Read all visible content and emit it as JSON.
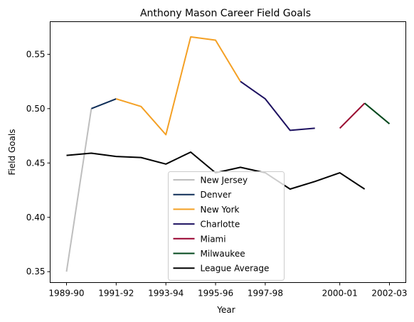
{
  "chart_data": {
    "type": "line",
    "title": "Anthony Mason  Career Field Goals",
    "xlabel": "Year",
    "ylabel": "Field Goals",
    "seasons": [
      "1989-90",
      "1990-91",
      "1991-92",
      "1992-93",
      "1993-94",
      "1994-95",
      "1995-96",
      "1996-97",
      "1997-98",
      "1998-99",
      "1999-00",
      "2000-01",
      "2001-02",
      "2002-03"
    ],
    "xtick_labels": [
      "1989-90",
      "1991-92",
      "1993-94",
      "1995-96",
      "1997-98",
      "2000-01",
      "2002-03"
    ],
    "ylim": [
      0.34,
      0.58
    ],
    "yticks": [
      0.35,
      0.4,
      0.45,
      0.5,
      0.55
    ],
    "ytick_labels": [
      "0.35",
      "0.40",
      "0.45",
      "0.50",
      "0.55"
    ],
    "legend_position": "lower center",
    "grid": false,
    "series": [
      {
        "name": "New Jersey",
        "color": "#bebebe",
        "start": 0,
        "values": [
          0.35,
          0.5
        ]
      },
      {
        "name": "Denver",
        "color": "#0e2d57",
        "start": 1,
        "values": [
          0.5,
          0.509
        ]
      },
      {
        "name": "New York",
        "color": "#f4a024",
        "start": 2,
        "values": [
          0.509,
          0.502,
          0.476,
          0.566,
          0.563,
          0.525
        ]
      },
      {
        "name": "Charlotte",
        "color": "#1d1160",
        "start": 7,
        "values": [
          0.525,
          0.509,
          0.48,
          0.482
        ]
      },
      {
        "name": "Miami",
        "color": "#98002e",
        "start": 11,
        "values": [
          0.482,
          0.505
        ]
      },
      {
        "name": "Milwaukee",
        "color": "#00471b",
        "start": 12,
        "values": [
          0.505,
          0.486
        ]
      },
      {
        "name": "League Average",
        "color": "#000000",
        "start": 0,
        "values": [
          0.457,
          0.459,
          0.456,
          0.455,
          0.449,
          0.46,
          0.441,
          0.446,
          0.441,
          0.426,
          0.433,
          0.441,
          0.426
        ]
      }
    ]
  }
}
